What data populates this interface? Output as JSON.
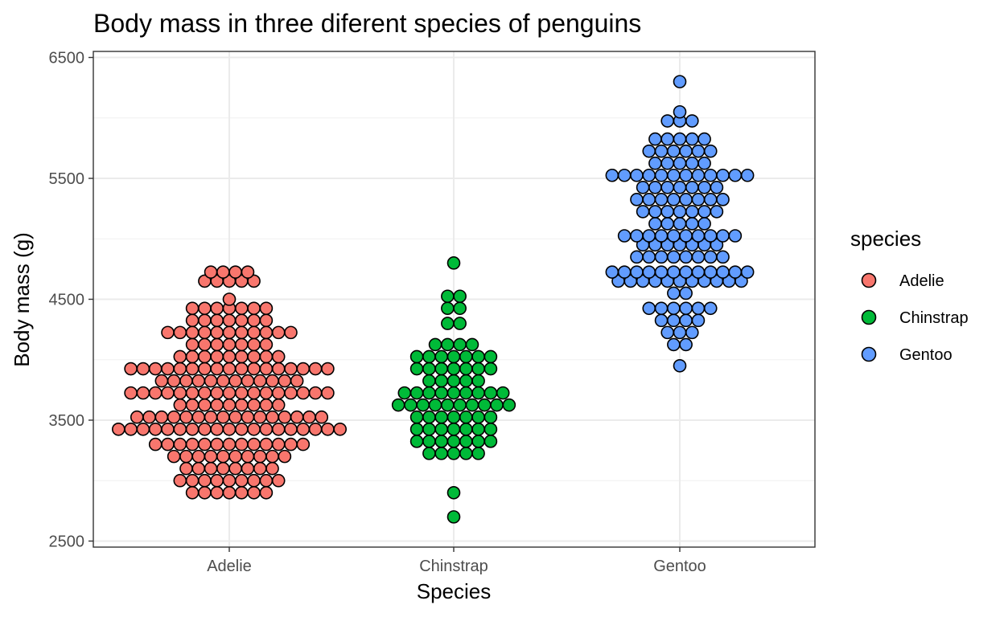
{
  "chart_data": {
    "type": "scatter",
    "subtype": "dotplot",
    "title": "Body mass in three diferent species of penguins",
    "xlabel": "Species",
    "ylabel": "Body mass (g)",
    "categories": [
      "Adelie",
      "Chinstrap",
      "Gentoo"
    ],
    "ylim": [
      2450,
      6550
    ],
    "yticks": [
      2500,
      3500,
      4500,
      5500,
      6500
    ],
    "grid": true,
    "legend": {
      "title": "species",
      "position": "right"
    },
    "series": [
      {
        "name": "Adelie",
        "color": "#f8766d",
        "bins": [
          {
            "y": 2900,
            "n": 7
          },
          {
            "y": 3000,
            "n": 9
          },
          {
            "y": 3100,
            "n": 8
          },
          {
            "y": 3200,
            "n": 10
          },
          {
            "y": 3300,
            "n": 13
          },
          {
            "y": 3425,
            "n": 19
          },
          {
            "y": 3525,
            "n": 16
          },
          {
            "y": 3625,
            "n": 9
          },
          {
            "y": 3725,
            "n": 17
          },
          {
            "y": 3825,
            "n": 12
          },
          {
            "y": 3925,
            "n": 17
          },
          {
            "y": 4025,
            "n": 9
          },
          {
            "y": 4125,
            "n": 7
          },
          {
            "y": 4225,
            "n": 11
          },
          {
            "y": 4325,
            "n": 7
          },
          {
            "y": 4425,
            "n": 7
          },
          {
            "y": 4500,
            "n": 1
          },
          {
            "y": 4650,
            "n": 5
          },
          {
            "y": 4725,
            "n": 4
          }
        ]
      },
      {
        "name": "Chinstrap",
        "color": "#00ba38",
        "bins": [
          {
            "y": 2700,
            "n": 1
          },
          {
            "y": 2900,
            "n": 1
          },
          {
            "y": 3225,
            "n": 5
          },
          {
            "y": 3325,
            "n": 7
          },
          {
            "y": 3425,
            "n": 7
          },
          {
            "y": 3525,
            "n": 7
          },
          {
            "y": 3625,
            "n": 10
          },
          {
            "y": 3725,
            "n": 9
          },
          {
            "y": 3825,
            "n": 5
          },
          {
            "y": 3925,
            "n": 7
          },
          {
            "y": 4025,
            "n": 7
          },
          {
            "y": 4125,
            "n": 4
          },
          {
            "y": 4300,
            "n": 2
          },
          {
            "y": 4425,
            "n": 2
          },
          {
            "y": 4525,
            "n": 2
          },
          {
            "y": 4800,
            "n": 1
          }
        ]
      },
      {
        "name": "Gentoo",
        "color": "#619cff",
        "bins": [
          {
            "y": 3950,
            "n": 1
          },
          {
            "y": 4125,
            "n": 2
          },
          {
            "y": 4225,
            "n": 3
          },
          {
            "y": 4325,
            "n": 4
          },
          {
            "y": 4425,
            "n": 6
          },
          {
            "y": 4550,
            "n": 2
          },
          {
            "y": 4650,
            "n": 11
          },
          {
            "y": 4725,
            "n": 12
          },
          {
            "y": 4850,
            "n": 8
          },
          {
            "y": 4950,
            "n": 7
          },
          {
            "y": 5025,
            "n": 10
          },
          {
            "y": 5125,
            "n": 5
          },
          {
            "y": 5225,
            "n": 7
          },
          {
            "y": 5325,
            "n": 8
          },
          {
            "y": 5425,
            "n": 7
          },
          {
            "y": 5525,
            "n": 12
          },
          {
            "y": 5625,
            "n": 5
          },
          {
            "y": 5725,
            "n": 6
          },
          {
            "y": 5825,
            "n": 5
          },
          {
            "y": 5975,
            "n": 3
          },
          {
            "y": 6050,
            "n": 1
          },
          {
            "y": 6300,
            "n": 1
          }
        ]
      }
    ]
  }
}
